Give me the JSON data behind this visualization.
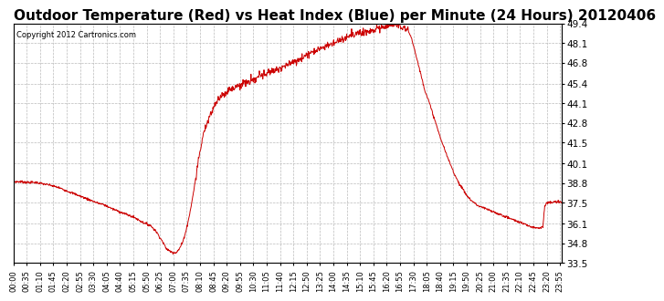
{
  "title": "Outdoor Temperature (Red) vs Heat Index (Blue) per Minute (24 Hours) 20120406",
  "copyright_text": "Copyright 2012 Cartronics.com",
  "line_color": "#cc0000",
  "background_color": "#ffffff",
  "grid_color": "#bbbbbb",
  "yticks": [
    33.5,
    34.8,
    36.1,
    37.5,
    38.8,
    40.1,
    41.5,
    42.8,
    44.1,
    45.4,
    46.8,
    48.1,
    49.4
  ],
  "ymin": 33.5,
  "ymax": 49.4,
  "title_fontsize": 11,
  "x_tick_interval_minutes": 35,
  "total_minutes": 1440,
  "temp_profile_key_points": [
    [
      0,
      38.9
    ],
    [
      20,
      38.9
    ],
    [
      40,
      38.85
    ],
    [
      60,
      38.85
    ],
    [
      80,
      38.75
    ],
    [
      100,
      38.65
    ],
    [
      120,
      38.5
    ],
    [
      140,
      38.3
    ],
    [
      160,
      38.1
    ],
    [
      180,
      37.9
    ],
    [
      200,
      37.7
    ],
    [
      220,
      37.5
    ],
    [
      240,
      37.35
    ],
    [
      260,
      37.1
    ],
    [
      280,
      36.9
    ],
    [
      300,
      36.7
    ],
    [
      320,
      36.5
    ],
    [
      340,
      36.2
    ],
    [
      360,
      36.0
    ],
    [
      375,
      35.6
    ],
    [
      385,
      35.2
    ],
    [
      395,
      34.8
    ],
    [
      400,
      34.5
    ],
    [
      410,
      34.3
    ],
    [
      420,
      34.2
    ],
    [
      428,
      34.2
    ],
    [
      435,
      34.4
    ],
    [
      445,
      34.9
    ],
    [
      455,
      35.8
    ],
    [
      465,
      37.0
    ],
    [
      475,
      38.5
    ],
    [
      485,
      40.2
    ],
    [
      495,
      41.5
    ],
    [
      505,
      42.5
    ],
    [
      515,
      43.2
    ],
    [
      525,
      43.8
    ],
    [
      535,
      44.2
    ],
    [
      545,
      44.6
    ],
    [
      555,
      44.8
    ],
    [
      565,
      45.0
    ],
    [
      575,
      45.1
    ],
    [
      585,
      45.2
    ],
    [
      600,
      45.4
    ],
    [
      615,
      45.5
    ],
    [
      625,
      45.6
    ],
    [
      635,
      45.7
    ],
    [
      645,
      45.9
    ],
    [
      655,
      46.0
    ],
    [
      665,
      46.1
    ],
    [
      675,
      46.2
    ],
    [
      685,
      46.3
    ],
    [
      695,
      46.4
    ],
    [
      705,
      46.5
    ],
    [
      715,
      46.6
    ],
    [
      725,
      46.7
    ],
    [
      735,
      46.85
    ],
    [
      745,
      46.95
    ],
    [
      755,
      47.1
    ],
    [
      765,
      47.25
    ],
    [
      775,
      47.4
    ],
    [
      785,
      47.55
    ],
    [
      795,
      47.65
    ],
    [
      805,
      47.75
    ],
    [
      815,
      47.85
    ],
    [
      825,
      47.95
    ],
    [
      835,
      48.05
    ],
    [
      845,
      48.15
    ],
    [
      855,
      48.3
    ],
    [
      865,
      48.4
    ],
    [
      875,
      48.5
    ],
    [
      885,
      48.6
    ],
    [
      895,
      48.7
    ],
    [
      905,
      48.75
    ],
    [
      915,
      48.8
    ],
    [
      925,
      48.85
    ],
    [
      935,
      48.9
    ],
    [
      945,
      49.0
    ],
    [
      955,
      49.1
    ],
    [
      965,
      49.15
    ],
    [
      975,
      49.2
    ],
    [
      985,
      49.25
    ],
    [
      995,
      49.3
    ],
    [
      1005,
      49.3
    ],
    [
      1015,
      49.25
    ],
    [
      1025,
      49.15
    ],
    [
      1035,
      49.0
    ],
    [
      1045,
      48.5
    ],
    [
      1055,
      47.5
    ],
    [
      1065,
      46.5
    ],
    [
      1075,
      45.5
    ],
    [
      1080,
      45.0
    ],
    [
      1090,
      44.3
    ],
    [
      1100,
      43.5
    ],
    [
      1110,
      42.7
    ],
    [
      1120,
      41.9
    ],
    [
      1130,
      41.2
    ],
    [
      1140,
      40.5
    ],
    [
      1150,
      39.9
    ],
    [
      1160,
      39.3
    ],
    [
      1170,
      38.8
    ],
    [
      1180,
      38.4
    ],
    [
      1190,
      38.0
    ],
    [
      1200,
      37.7
    ],
    [
      1210,
      37.5
    ],
    [
      1220,
      37.3
    ],
    [
      1230,
      37.2
    ],
    [
      1240,
      37.1
    ],
    [
      1250,
      37.0
    ],
    [
      1260,
      36.9
    ],
    [
      1270,
      36.8
    ],
    [
      1280,
      36.7
    ],
    [
      1290,
      36.6
    ],
    [
      1300,
      36.5
    ],
    [
      1310,
      36.4
    ],
    [
      1320,
      36.3
    ],
    [
      1330,
      36.2
    ],
    [
      1340,
      36.1
    ],
    [
      1350,
      36.0
    ],
    [
      1360,
      35.9
    ],
    [
      1370,
      35.85
    ],
    [
      1380,
      35.85
    ],
    [
      1390,
      35.9
    ],
    [
      1395,
      37.3
    ],
    [
      1400,
      37.5
    ],
    [
      1410,
      37.5
    ],
    [
      1420,
      37.55
    ],
    [
      1430,
      37.55
    ],
    [
      1439,
      37.55
    ]
  ]
}
